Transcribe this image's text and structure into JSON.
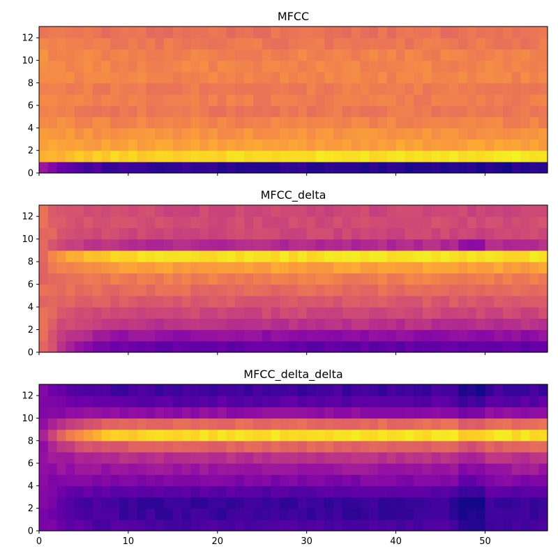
{
  "colormap": "plasma",
  "chart_data": [
    {
      "type": "heatmap",
      "title": "MFCC",
      "xlim": [
        0,
        57
      ],
      "ylim": [
        0,
        13
      ],
      "n_frames": 57,
      "n_coeffs": 13,
      "xticks": [],
      "yticks": [
        0,
        2,
        4,
        6,
        8,
        10,
        12
      ],
      "row_profile": [
        0.06,
        0.9,
        0.78,
        0.74,
        0.7,
        0.66,
        0.68,
        0.67,
        0.7,
        0.7,
        0.69,
        0.66,
        0.64
      ],
      "grid": false
    },
    {
      "type": "heatmap",
      "title": "MFCC_delta",
      "xlim": [
        0,
        57
      ],
      "ylim": [
        0,
        13
      ],
      "n_frames": 57,
      "n_coeffs": 13,
      "xticks": [],
      "yticks": [
        0,
        2,
        4,
        6,
        8,
        10,
        12
      ],
      "row_profile": [
        0.18,
        0.3,
        0.42,
        0.5,
        0.56,
        0.62,
        0.68,
        0.78,
        0.94,
        0.4,
        0.5,
        0.52,
        0.5
      ],
      "grid": false
    },
    {
      "type": "heatmap",
      "title": "MFCC_delta_delta",
      "xlim": [
        0,
        57
      ],
      "ylim": [
        0,
        13
      ],
      "n_frames": 57,
      "n_coeffs": 13,
      "xticks": [
        0,
        10,
        20,
        30,
        40,
        50
      ],
      "yticks": [
        0,
        2,
        4,
        6,
        8,
        10,
        12
      ],
      "row_profile": [
        0.12,
        0.08,
        0.08,
        0.16,
        0.26,
        0.34,
        0.42,
        0.6,
        0.94,
        0.62,
        0.3,
        0.16,
        0.1
      ],
      "grid": false
    }
  ]
}
